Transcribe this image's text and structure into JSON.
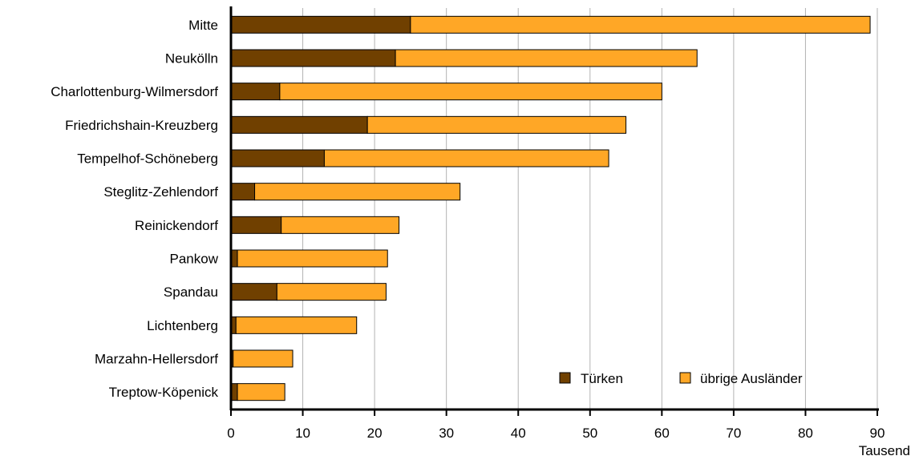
{
  "chart_data": {
    "type": "bar",
    "orientation": "horizontal",
    "stacked": true,
    "categories": [
      "Mitte",
      "Neukölln",
      "Charlottenburg-Wilmersdorf",
      "Friedrichshain-Kreuzberg",
      "Tempelhof-Schöneberg",
      "Steglitz-Zehlendorf",
      "Reinickendorf",
      "Pankow",
      "Spandau",
      "Lichtenberg",
      "Marzahn-Hellersdorf",
      "Treptow-Köpenick"
    ],
    "series": [
      {
        "name": "Türken",
        "color": "#704000",
        "values": [
          25.0,
          22.9,
          6.8,
          19.0,
          13.0,
          3.3,
          7.0,
          0.9,
          6.4,
          0.7,
          0.3,
          0.9
        ]
      },
      {
        "name": "übrige Ausländer",
        "color": "#ffa726",
        "values": [
          64.0,
          42.0,
          53.2,
          36.0,
          39.6,
          28.6,
          16.4,
          20.9,
          15.2,
          16.8,
          8.3,
          6.6
        ]
      }
    ],
    "xlim": [
      0,
      90
    ],
    "xticks": [
      "0",
      "10",
      "20",
      "30",
      "40",
      "50",
      "60",
      "70",
      "80",
      "90"
    ],
    "unit_label": "Tausend",
    "grid": "vertical",
    "legend_position": "bottom-right"
  }
}
